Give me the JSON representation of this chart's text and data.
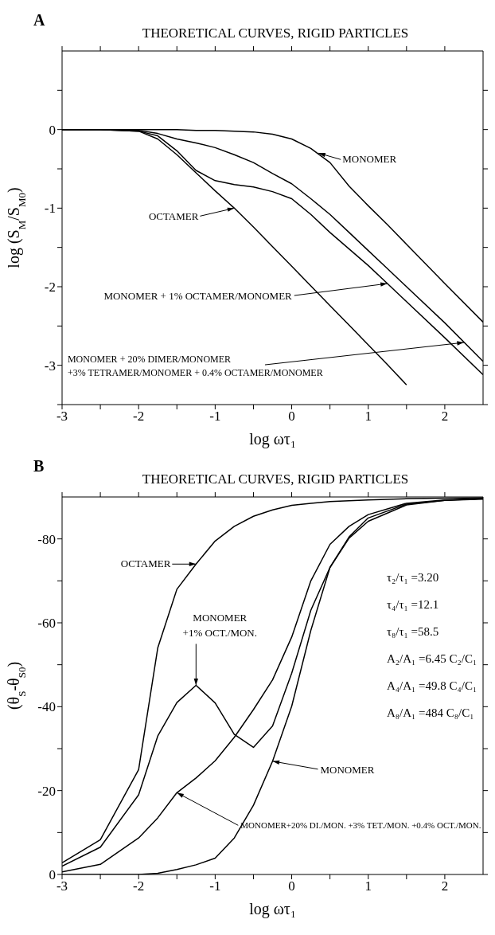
{
  "chart_data": [
    {
      "type": "line",
      "title": "THEORETICAL CURVES, RIGID PARTICLES",
      "xlabel": "log ωτ₁",
      "ylabel": "log (S$_{M}$/S$_{M0}$)",
      "annotations": [
        "A",
        {
          "text": "MONOMER",
          "x": 0.35,
          "y": -0.3
        },
        {
          "text": "OCTAMER",
          "x": -0.75,
          "y": -1.0
        },
        {
          "text": "MONOMER + 1% OCTAMER/MONOMER",
          "x": 1.25,
          "y": -1.96
        },
        {
          "text": "MONOMER + 20% DIMER/MONOMER\n+3% TETRAMER/MONOMER + 0.4% OCTAMER/MONOMER",
          "x": 2.25,
          "y": -2.71
        }
      ],
      "x": [
        -3,
        -2.5,
        -2,
        -1.75,
        -1.5,
        -1.25,
        -1,
        -0.75,
        -0.5,
        -0.25,
        0,
        0.25,
        0.5,
        0.75,
        1,
        1.25,
        1.5,
        2,
        2.5
      ],
      "series": [
        {
          "color": "#000000",
          "values": [
            0,
            0,
            0,
            0,
            0,
            -0.01,
            -0.01,
            -0.02,
            -0.03,
            -0.06,
            -0.12,
            -0.24,
            -0.42,
            -0.72,
            -0.97,
            -1.21,
            -1.46,
            -1.96,
            -2.45
          ]
        },
        {
          "color": "#000000",
          "values": [
            0,
            0,
            -0.02,
            -0.12,
            -0.32,
            -0.55,
            -0.78,
            -1.0,
            -1.24,
            -1.49,
            -1.74,
            -1.99,
            -2.24,
            -2.49,
            -2.74,
            -2.99,
            -3.25,
            null,
            null
          ]
        },
        {
          "color": "#000000",
          "values": [
            0,
            0,
            -0.02,
            -0.08,
            -0.27,
            -0.52,
            -0.65,
            -0.7,
            -0.73,
            -0.79,
            -0.88,
            -1.08,
            -1.31,
            -1.52,
            -1.73,
            -1.96,
            -2.19,
            -2.65,
            -3.12
          ]
        },
        {
          "color": "#000000",
          "values": [
            0,
            0,
            -0.01,
            -0.05,
            -0.12,
            -0.17,
            -0.23,
            -0.32,
            -0.42,
            -0.56,
            -0.69,
            -0.88,
            -1.08,
            -1.31,
            -1.54,
            -1.77,
            -2.0,
            -2.46,
            -2.95
          ]
        }
      ],
      "xlim": [
        -3,
        2.5
      ],
      "xticks": [
        -3,
        {
          "value": -2.5,
          "label": null
        },
        -2,
        {
          "value": -1.5,
          "label": null
        },
        -1,
        {
          "value": -0.5,
          "label": null
        },
        0,
        {
          "value": 0.5,
          "label": null
        },
        1,
        {
          "value": 1.5,
          "label": null
        },
        2
      ],
      "ylim": [
        -3.5,
        1
      ],
      "yticks": [
        {
          "value": -3.5,
          "label": null
        },
        -3,
        {
          "value": -2.5,
          "label": null
        },
        -2,
        {
          "value": -1.5,
          "label": null
        },
        -1,
        {
          "value": -0.5,
          "label": null
        },
        0,
        {
          "value": 0.5,
          "label": null
        }
      ],
      "grid": false,
      "marker": "none",
      "line_style": "solid"
    },
    {
      "type": "line",
      "title": "THEORETICAL CURVES, RIGID PARTICLES",
      "xlabel": "log ωτ₁",
      "ylabel": "(θ$_{S}$-θ$_{S0}$)",
      "annotations": [
        "B",
        "τ₂/τ₁ =3.20",
        "τ₄/τ₁ =12.1",
        "τ₈/τ₁ =58.5",
        "A₂/A₁ =6.45 C₂/C₁",
        "A₄/A₁ =49.8 C₄/C₁",
        "A₈/A₁ =484 C₈/C₁",
        {
          "text": "OCTAMER",
          "x": -1.25,
          "y": -74
        },
        {
          "text": "MONOMER\n+1% OCT./MON.",
          "x": -1.25,
          "y": -45.1
        },
        {
          "text": "MONOMER",
          "x": -0.25,
          "y": -27
        },
        {
          "text": "MONOMER+20% DI./MON. +3% TET./MON. +0.4% OCT./MON.",
          "x": -1.5,
          "y": -19.5
        }
      ],
      "x": [
        -3,
        -2.5,
        -2,
        -1.75,
        -1.5,
        -1.25,
        -1,
        -0.75,
        -0.5,
        -0.25,
        0,
        0.25,
        0.5,
        0.75,
        1,
        1.5,
        2,
        2.5
      ],
      "series": [
        {
          "color": "#000000",
          "values": [
            0,
            0,
            0,
            -0.3,
            -1.2,
            -2.3,
            -3.9,
            -8.7,
            -16.5,
            -27,
            -40.1,
            -58.2,
            -73.2,
            -80.5,
            -85,
            -88.3,
            -89.2,
            -89.6
          ]
        },
        {
          "color": "#000000",
          "values": [
            -2.8,
            -8.3,
            -25,
            -54,
            -68,
            -74,
            -79.5,
            -83,
            -85.4,
            -86.9,
            -88,
            -88.5,
            -88.9,
            -89.1,
            -89.3,
            -89.6,
            -89.7,
            -89.8
          ]
        },
        {
          "color": "#000000",
          "values": [
            -2,
            -6.5,
            -19,
            -33,
            -41,
            -45.1,
            -40.9,
            -33.4,
            -30.3,
            -35.4,
            -48,
            -63,
            -73.2,
            -80.2,
            -84.2,
            -88.1,
            -89.2,
            -89.5
          ]
        },
        {
          "color": "#000000",
          "values": [
            -0.6,
            -2.4,
            -8.7,
            -13.5,
            -19.5,
            -23,
            -27.1,
            -32.7,
            -39.3,
            -46.4,
            -56.6,
            -70,
            -78.7,
            -83,
            -85.8,
            -88.5,
            -89.3,
            -89.6
          ]
        }
      ],
      "xlim": [
        -3,
        2.5
      ],
      "xticks": [
        -3,
        {
          "value": -2.5,
          "label": null
        },
        -2,
        {
          "value": -1.5,
          "label": null
        },
        -1,
        {
          "value": -0.5,
          "label": null
        },
        0,
        {
          "value": 0.5,
          "label": null
        },
        1,
        {
          "value": 1.5,
          "label": null
        },
        2
      ],
      "ylim": [
        0,
        -90
      ],
      "yticks": [
        0,
        {
          "value": -10,
          "label": null
        },
        -20,
        {
          "value": -30,
          "label": null
        },
        -40,
        {
          "value": -50,
          "label": null
        },
        -60,
        {
          "value": -70,
          "label": null
        },
        -80
      ],
      "grid": false,
      "marker": "none",
      "line_style": "solid"
    }
  ]
}
